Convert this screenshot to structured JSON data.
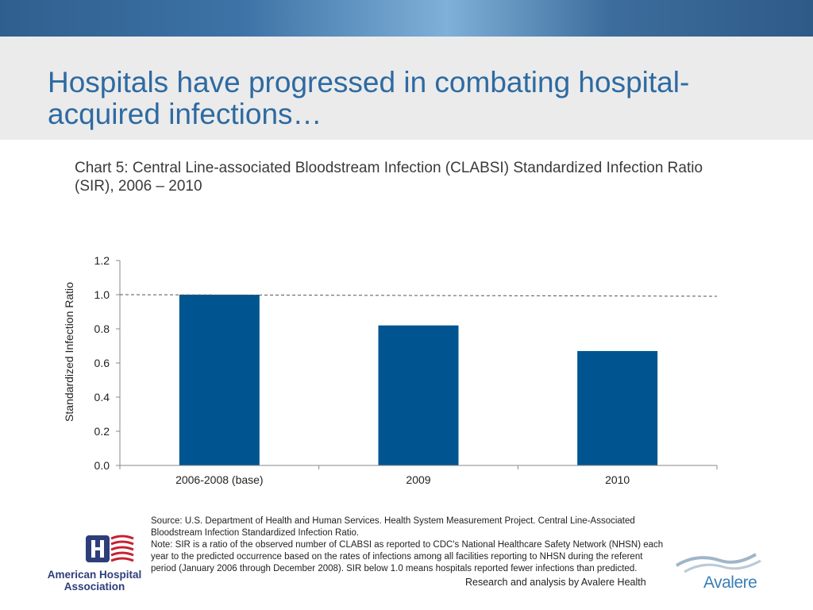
{
  "slide": {
    "title": "Hospitals have progressed in combating hospital-acquired infections…",
    "chart_title": "Chart 5: Central Line-associated Bloodstream Infection (CLABSI) Standardized Infection Ratio (SIR), 2006 – 2010"
  },
  "chart_data": {
    "type": "bar",
    "title": "Chart 5: Central Line-associated Bloodstream Infection (CLABSI) Standardized Infection Ratio (SIR), 2006 – 2010",
    "categories": [
      "2006-2008 (base)",
      "2009",
      "2010"
    ],
    "values": [
      1.0,
      0.82,
      0.67
    ],
    "xlabel": "",
    "ylabel": "Standardized Infection Ratio",
    "ylim": [
      0,
      1.2
    ],
    "yticks": [
      "0.0",
      "0.2",
      "0.4",
      "0.6",
      "0.8",
      "1.0",
      "1.2"
    ],
    "reference_line": 1.0,
    "bar_color": "#005590",
    "grid": false
  },
  "notes": {
    "source": "Source: U.S. Department of Health and Human Services. Health System Measurement Project. Central Line-Associated Bloodstream Infection Standardized Infection Ratio.",
    "note": "Note: SIR is a ratio of the observed number of CLABSI as reported to CDC's National Healthcare Safety Network (NHSN) each year to the predicted occurrence based on the rates of infections among all facilities reporting to NHSN during the referent period (January 2006 through December 2008). SIR below 1.0 means hospitals reported fewer infections than predicted."
  },
  "footer": {
    "credit": "Research and analysis by Avalere Health",
    "aha_logo_text": "American Hospital Association",
    "avalere_logo_text": "Avalere"
  },
  "colors": {
    "title": "#2e6aa1",
    "banner": "#3d73a6",
    "bar": "#005590"
  }
}
